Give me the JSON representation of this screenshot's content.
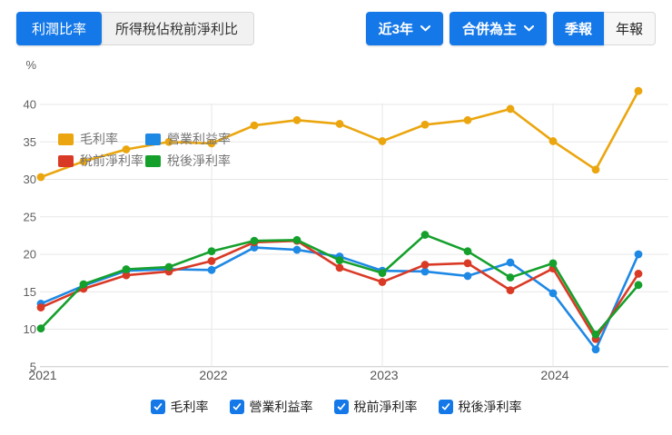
{
  "colors": {
    "accent_blue": "#1478e8",
    "grid_line": "#e7e7e7",
    "axis_line": "#c9c9c9",
    "tick_text": "#616161"
  },
  "tabs": {
    "active": "利潤比率",
    "inactive": "所得稅佔稅前淨利比"
  },
  "controls": {
    "range_dropdown": "近3年",
    "statement_dropdown": "合併為主",
    "period_active": "季報",
    "period_inactive": "年報"
  },
  "chart_data": {
    "type": "line",
    "title": "利潤比率",
    "ylabel": "%",
    "ylim": [
      5,
      45
    ],
    "yticks": [
      40,
      35,
      30,
      25,
      20,
      15,
      10,
      5
    ],
    "grid": true,
    "legend_position": "top-left",
    "x": [
      "2021Q1",
      "2021Q2",
      "2021Q3",
      "2021Q4",
      "2022Q1",
      "2022Q2",
      "2022Q3",
      "2022Q4",
      "2023Q1",
      "2023Q2",
      "2023Q3",
      "2023Q4",
      "2024Q1",
      "2024Q2",
      "2024Q3"
    ],
    "year_ticks": [
      {
        "label": "2021",
        "index": 0
      },
      {
        "label": "2022",
        "index": 4
      },
      {
        "label": "2023",
        "index": 8
      },
      {
        "label": "2024",
        "index": 12
      }
    ],
    "series": [
      {
        "name": "毛利率",
        "key": "gross-margin",
        "color": "#eba60f",
        "values": [
          30.3,
          32.4,
          34.0,
          35.0,
          34.8,
          37.2,
          37.9,
          37.4,
          35.1,
          37.3,
          37.9,
          39.4,
          35.1,
          31.3,
          41.8
        ]
      },
      {
        "name": "營業利益率",
        "key": "operating-margin",
        "color": "#1e88e5",
        "values": [
          13.4,
          15.8,
          17.8,
          18.0,
          17.9,
          20.9,
          20.6,
          19.7,
          17.8,
          17.7,
          17.1,
          18.9,
          14.8,
          7.3,
          20.0
        ]
      },
      {
        "name": "稅前淨利率",
        "key": "pretax-margin",
        "color": "#d93a26",
        "values": [
          12.9,
          15.4,
          17.2,
          17.7,
          19.1,
          21.6,
          21.8,
          18.2,
          16.3,
          18.6,
          18.8,
          15.2,
          18.1,
          8.7,
          17.4
        ]
      },
      {
        "name": "稅後淨利率",
        "key": "posttax-margin",
        "color": "#15a02c",
        "values": [
          10.1,
          16.0,
          18.0,
          18.3,
          20.4,
          21.8,
          21.9,
          19.2,
          17.5,
          22.6,
          20.4,
          16.9,
          18.8,
          9.3,
          15.9
        ]
      }
    ]
  },
  "footer_checkboxes": [
    {
      "label": "毛利率",
      "checked": true
    },
    {
      "label": "營業利益率",
      "checked": true
    },
    {
      "label": "稅前淨利率",
      "checked": true
    },
    {
      "label": "稅後淨利率",
      "checked": true
    }
  ]
}
